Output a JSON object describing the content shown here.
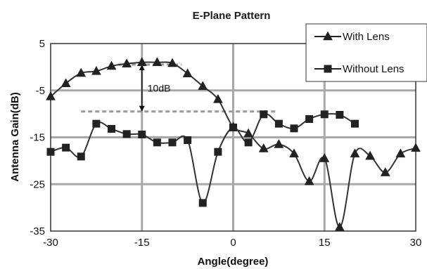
{
  "chart_data": {
    "type": "line",
    "title": "E-Plane Pattern",
    "xlabel": "Angle(degree)",
    "ylabel": "Antenna Gain(dB)",
    "xlim": [
      -30,
      30
    ],
    "ylim": [
      -35,
      5
    ],
    "xticks": [
      -30,
      -15,
      0,
      15,
      30
    ],
    "yticks": [
      5,
      -5,
      -15,
      -25,
      -35
    ],
    "xtick_labels": [
      "-30",
      "-15",
      "0",
      "15",
      "30"
    ],
    "ytick_labels": [
      "5",
      "-5",
      "-15",
      "-25",
      "-35"
    ],
    "grid": true,
    "legend_position": "top-right",
    "annotation": {
      "text": "10dB",
      "x": -15,
      "y_top": 0.5,
      "y_bottom": -9.5
    },
    "series": [
      {
        "name": "With Lens",
        "marker": "triangle",
        "color": "#333333",
        "points": [
          [
            -30,
            -6.3
          ],
          [
            -27.5,
            -3.5
          ],
          [
            -25,
            -1.3
          ],
          [
            -22.5,
            -0.9
          ],
          [
            -20,
            0.2
          ],
          [
            -17.5,
            0.7
          ],
          [
            -15,
            1.0
          ],
          [
            -12.5,
            1.0
          ],
          [
            -10,
            0.8
          ],
          [
            -7.5,
            -1.4
          ],
          [
            -5,
            -4.1
          ],
          [
            -2.5,
            -6.9
          ],
          [
            0,
            -12.8
          ],
          [
            2.5,
            -14.2
          ],
          [
            5,
            -17.4
          ],
          [
            7.5,
            -16.5
          ],
          [
            10,
            -18.5
          ],
          [
            12.5,
            -24.4
          ],
          [
            15,
            -19.5
          ],
          [
            17.5,
            -34.2
          ],
          [
            20,
            -18.5
          ],
          [
            22.5,
            -19.0
          ],
          [
            25,
            -22.5
          ],
          [
            27.5,
            -18.5
          ],
          [
            30,
            -17.3
          ]
        ]
      },
      {
        "name": "Without Lens",
        "marker": "square",
        "color": "#333333",
        "points": [
          [
            -30,
            -18.1
          ],
          [
            -27.5,
            -17.2
          ],
          [
            -25,
            -19.1
          ],
          [
            -22.5,
            -12.1
          ],
          [
            -20,
            -13.2
          ],
          [
            -17.5,
            -14.3
          ],
          [
            -15,
            -14.4
          ],
          [
            -12.5,
            -16.1
          ],
          [
            -10,
            -16.1
          ],
          [
            -7.5,
            -15.6
          ],
          [
            -5,
            -29.0
          ],
          [
            -2.5,
            -18.1
          ],
          [
            0,
            -12.9
          ],
          [
            2.5,
            -16.1
          ],
          [
            5,
            -10.1
          ],
          [
            7.5,
            -12.1
          ],
          [
            10,
            -13.1
          ],
          [
            12.5,
            -11.1
          ],
          [
            15,
            -10.1
          ],
          [
            17.5,
            -10.2
          ],
          [
            20,
            -12.1
          ]
        ]
      }
    ]
  }
}
